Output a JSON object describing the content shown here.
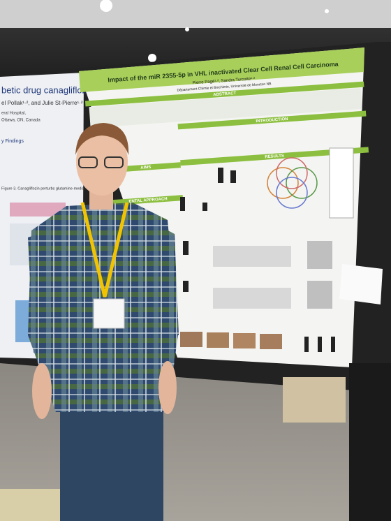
{
  "poster": {
    "title": "Impact of the miR 2355-5p in VHL inactivated Clear Cell Renal Cell Carcinoma",
    "authors": "Pierre Pagé¹·², Sandra Turcotte¹·²",
    "affiliation": "Département Chimie et Biochimie, Université de Moncton NB",
    "sections": [
      "ABSTRACT",
      "INTRODUCTION",
      "AIMS",
      "RESULTS",
      "ENTAL APPROACH"
    ]
  },
  "left_poster": {
    "title": "betic drug canagliflozin",
    "authors": "el Pollak¹·², and Julie St-Pierre¹·²",
    "affiliation": "eral Hospital,",
    "location": "Ottawa, ON, Canada",
    "heading": "y Findings",
    "figure_caption": "Figure 3. Canagliflozin perturbs glutamine-mediated"
  }
}
